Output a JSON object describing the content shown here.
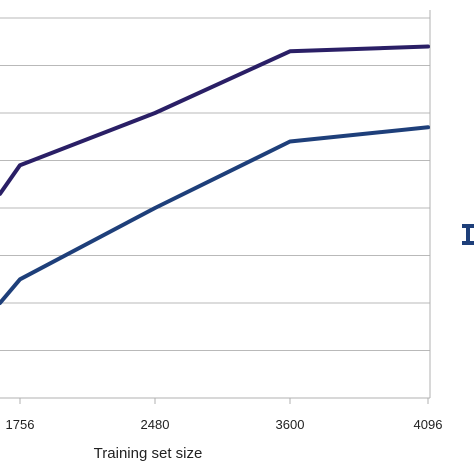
{
  "chart_data": {
    "type": "line",
    "title": "",
    "xlabel": "Training set size",
    "ylabel": "",
    "x_ticks": [
      1756,
      2480,
      3600,
      4096
    ],
    "x_tick_labels": [
      "1756",
      "2480",
      "3600",
      "4096"
    ],
    "xlim": [
      1500,
      4096
    ],
    "ylim": [
      0,
      8
    ],
    "grid": true,
    "legend": "right (cropped)",
    "series": [
      {
        "color": "#2a1f66",
        "x": [
          1500,
          1756,
          2480,
          3600,
          4096
        ],
        "y": [
          4.3,
          4.9,
          6.0,
          7.3,
          7.4
        ]
      },
      {
        "color": "#1e3f7a",
        "x": [
          1500,
          1756,
          2480,
          3600,
          4096
        ],
        "y": [
          2.0,
          2.5,
          4.0,
          5.4,
          5.7
        ]
      }
    ]
  },
  "legend_marker_color": "#1e3f7a"
}
